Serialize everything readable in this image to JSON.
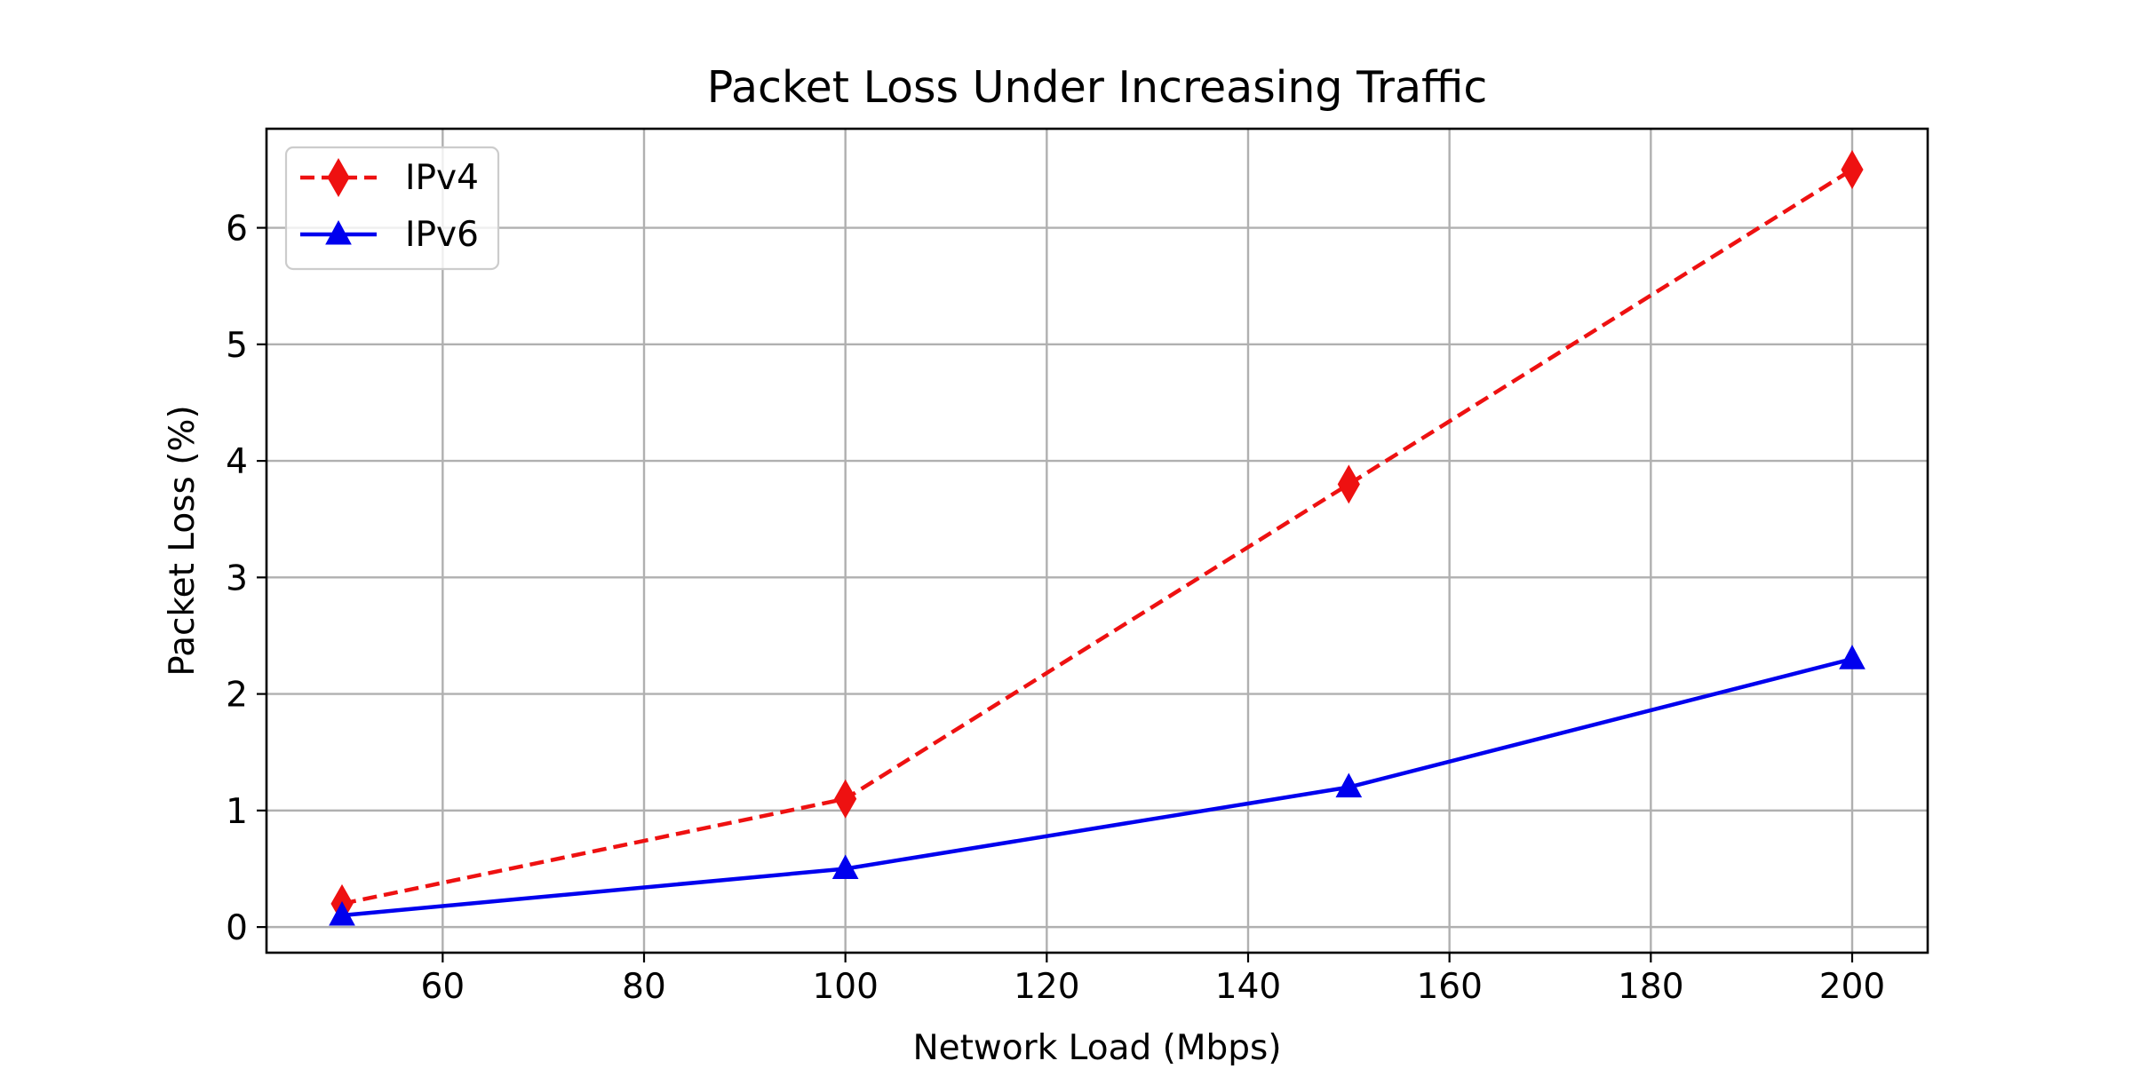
{
  "chart_data": {
    "type": "line",
    "title": "Packet Loss Under Increasing Traffic",
    "xlabel": "Network Load (Mbps)",
    "ylabel": "Packet Loss (%)",
    "x": [
      50,
      100,
      150,
      200
    ],
    "xlim": [
      42.5,
      207.5
    ],
    "ylim": [
      -0.22,
      6.85
    ],
    "xticks": [
      60,
      80,
      100,
      120,
      140,
      160,
      180,
      200
    ],
    "yticks": [
      0,
      1,
      2,
      3,
      4,
      5,
      6
    ],
    "grid": true,
    "legend_position": "top-left",
    "series": [
      {
        "name": "IPv4",
        "values": [
          0.2,
          1.1,
          3.8,
          6.5
        ],
        "color": "#ee1111",
        "line_style": "dashed",
        "marker": "diamond"
      },
      {
        "name": "IPv6",
        "values": [
          0.1,
          0.5,
          1.2,
          2.3
        ],
        "color": "#0000ee",
        "line_style": "solid",
        "marker": "triangle"
      }
    ]
  }
}
